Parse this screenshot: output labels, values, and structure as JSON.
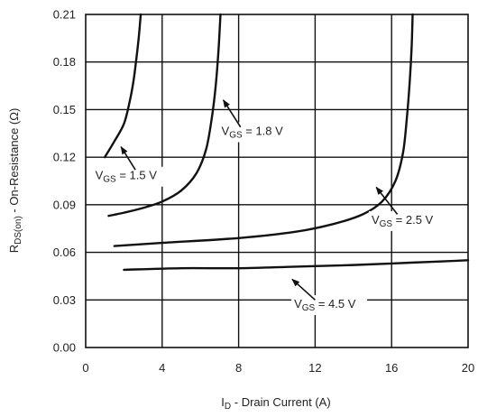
{
  "chart_data": {
    "type": "line",
    "xlabel": {
      "main": "I",
      "sub": "D",
      "rest": " - Drain Current (A)"
    },
    "ylabel": {
      "main": "R",
      "sub": "DS(on)",
      "rest": " - On-Resistance (Ω)"
    },
    "xlim": [
      0,
      20
    ],
    "ylim": [
      0.0,
      0.21
    ],
    "xticks": [
      0,
      4,
      8,
      12,
      16,
      20
    ],
    "xtick_labels": [
      "0",
      "4",
      "8",
      "12",
      "16",
      "20"
    ],
    "yticks": [
      0.0,
      0.03,
      0.06,
      0.09,
      0.12,
      0.15,
      0.18,
      0.21
    ],
    "ytick_labels": [
      "0.00",
      "0.03",
      "0.06",
      "0.09",
      "0.12",
      "0.15",
      "0.18",
      "0.21"
    ],
    "grid": true,
    "series": [
      {
        "label": {
          "main": "V",
          "sub": "GS",
          "rest": " = 1.5 V"
        },
        "x": [
          1.0,
          1.5,
          2.0,
          2.3,
          2.5,
          2.65,
          2.78,
          2.88
        ],
        "y": [
          0.12,
          0.13,
          0.141,
          0.155,
          0.168,
          0.182,
          0.196,
          0.21
        ]
      },
      {
        "label": {
          "main": "V",
          "sub": "GS",
          "rest": " = 1.8 V"
        },
        "x": [
          1.2,
          2.0,
          3.0,
          4.0,
          5.0,
          5.8,
          6.3,
          6.6,
          6.8,
          6.95,
          7.05
        ],
        "y": [
          0.083,
          0.085,
          0.088,
          0.092,
          0.099,
          0.11,
          0.125,
          0.145,
          0.165,
          0.188,
          0.21
        ]
      },
      {
        "label": {
          "main": "V",
          "sub": "GS",
          "rest": " = 2.5 V"
        },
        "x": [
          1.5,
          4,
          8,
          11,
          13,
          14.5,
          15.5,
          16.2,
          16.6,
          16.8,
          16.95,
          17.05,
          17.1
        ],
        "y": [
          0.064,
          0.066,
          0.069,
          0.073,
          0.078,
          0.084,
          0.092,
          0.105,
          0.123,
          0.145,
          0.168,
          0.19,
          0.21
        ]
      },
      {
        "label": {
          "main": "V",
          "sub": "GS",
          "rest": " = 4.5 V"
        },
        "x": [
          2.0,
          5,
          8,
          11,
          14,
          17,
          20
        ],
        "y": [
          0.049,
          0.05,
          0.05,
          0.051,
          0.052,
          0.0535,
          0.055
        ]
      }
    ],
    "annotations": [
      {
        "series": 0,
        "text_x": 0.5,
        "text_y": 0.106,
        "arrow_from_x": 2.6,
        "arrow_from_y": 0.112,
        "arrow_to_x": 1.85,
        "arrow_to_y": 0.1265
      },
      {
        "series": 1,
        "text_x": 7.1,
        "text_y": 0.134,
        "arrow_from_x": 8.1,
        "arrow_from_y": 0.139,
        "arrow_to_x": 7.2,
        "arrow_to_y": 0.156
      },
      {
        "series": 2,
        "text_x": 14.95,
        "text_y": 0.078,
        "arrow_from_x": 16.3,
        "arrow_from_y": 0.084,
        "arrow_to_x": 15.2,
        "arrow_to_y": 0.101
      },
      {
        "series": 3,
        "text_x": 10.9,
        "text_y": 0.025,
        "arrow_from_x": 12.0,
        "arrow_from_y": 0.03,
        "arrow_to_x": 10.8,
        "arrow_to_y": 0.043
      }
    ]
  }
}
